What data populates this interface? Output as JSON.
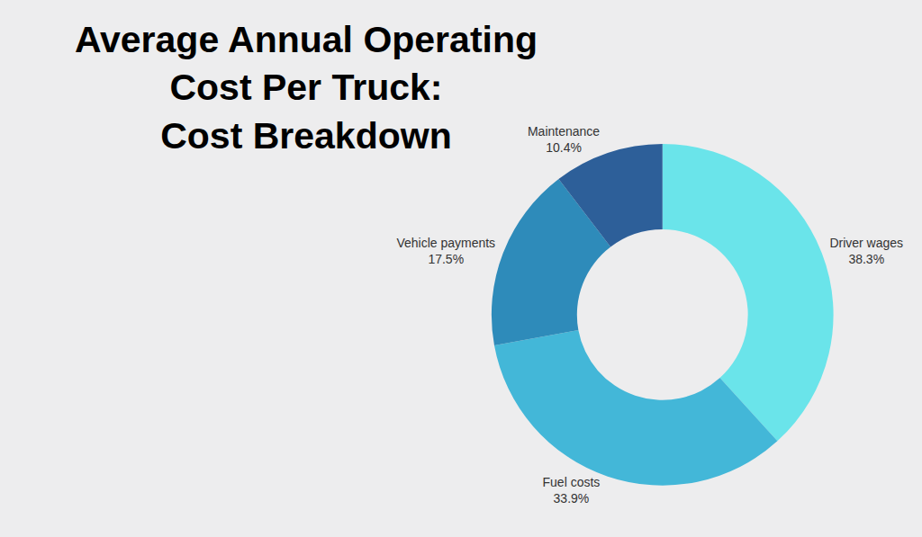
{
  "chart_data": {
    "type": "pie",
    "title": "Average Annual Operating Cost Per Truck: Cost Breakdown",
    "categories": [
      "Driver wages",
      "Fuel costs",
      "Vehicle payments",
      "Maintenance"
    ],
    "values": [
      38.3,
      33.9,
      17.5,
      10.4
    ],
    "value_labels": [
      "38.3%",
      "33.9%",
      "17.5%",
      "10.4%"
    ],
    "colors": [
      "#6ae4ea",
      "#43b7d8",
      "#2e8bba",
      "#2d5f99"
    ],
    "data_labels": true
  }
}
